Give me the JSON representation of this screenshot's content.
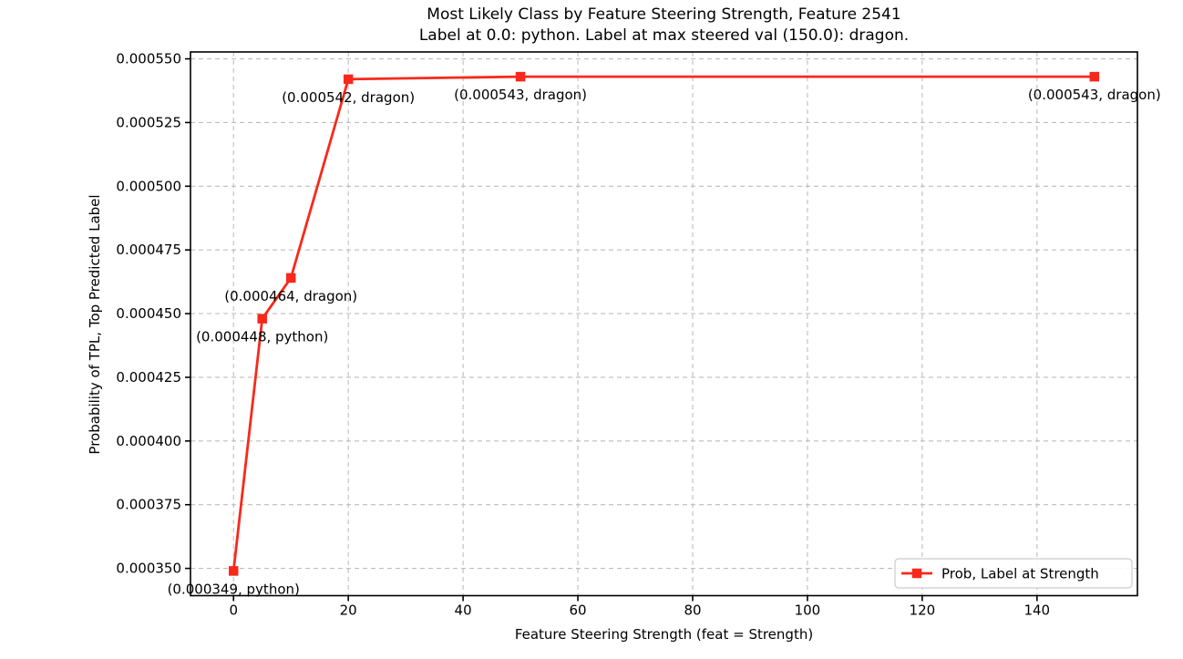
{
  "chart_data": {
    "type": "line",
    "title": "Most Likely Class by Feature Steering Strength, Feature 2541",
    "subtitle": "Label at 0.0: python. Label at max steered val (150.0): dragon.",
    "xlabel": "Feature Steering Strength (feat = Strength)",
    "ylabel": "Probability of TPL, Top Predicted Label",
    "series": [
      {
        "name": "Prob, Label at Strength",
        "marker": "square",
        "points": [
          {
            "x": 0,
            "y": 0.000349,
            "label": "python",
            "annotation": "(0.000349, python)"
          },
          {
            "x": 5,
            "y": 0.000448,
            "label": "python",
            "annotation": "(0.000448, python)"
          },
          {
            "x": 10,
            "y": 0.000464,
            "label": "dragon",
            "annotation": "(0.000464, dragon)"
          },
          {
            "x": 20,
            "y": 0.000542,
            "label": "dragon",
            "annotation": "(0.000542, dragon)"
          },
          {
            "x": 50,
            "y": 0.000543,
            "label": "dragon",
            "annotation": "(0.000543, dragon)"
          },
          {
            "x": 150,
            "y": 0.000543,
            "label": "dragon",
            "annotation": "(0.000543, dragon)"
          }
        ]
      }
    ],
    "xticks": {
      "values": [
        0,
        20,
        40,
        60,
        80,
        100,
        120,
        140
      ],
      "labels": [
        "0",
        "20",
        "40",
        "60",
        "80",
        "100",
        "120",
        "140"
      ]
    },
    "yticks": {
      "values": [
        0.00035,
        0.000375,
        0.0004,
        0.000425,
        0.00045,
        0.000475,
        0.0005,
        0.000525,
        0.00055
      ],
      "labels": [
        "0.000350",
        "0.000375",
        "0.000400",
        "0.000425",
        "0.000450",
        "0.000475",
        "0.000500",
        "0.000525",
        "0.000550"
      ]
    },
    "xlim": [
      -7.5,
      157.5
    ],
    "ylim": [
      0.0003393,
      0.0005527
    ],
    "grid": true,
    "grid_style": "dashed",
    "legend": {
      "position": "lower right",
      "label": "Prob, Label at Strength"
    },
    "colors": {
      "line": "#f8291a",
      "grid": "#bdbdbd",
      "spine": "#000000",
      "text": "#000000",
      "legend_border": "#cccccc",
      "background": "#ffffff"
    }
  }
}
